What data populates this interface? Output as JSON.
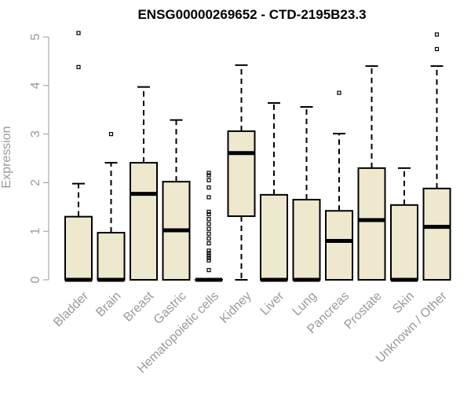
{
  "chart_data": {
    "type": "boxplot",
    "title": "ENSG00000269652 - CTD-2195B23.3",
    "xlabel": "",
    "ylabel": "Expression",
    "ylim": [
      0,
      5.2
    ],
    "yticks": [
      0,
      1,
      2,
      3,
      4,
      5
    ],
    "categories": [
      "Bladder",
      "Brain",
      "Breast",
      "Gastric",
      "Hematopoietic cells",
      "Kidney",
      "Liver",
      "Lung",
      "Pancreas",
      "Prostate",
      "Skin",
      "Unknown / Other"
    ],
    "colors": {
      "box_fill": "#EEE8CE",
      "box_stroke": "#000000",
      "axis": "#999999"
    },
    "boxes": [
      {
        "name": "Bladder",
        "min": 0,
        "q1": 0,
        "median": 0,
        "q3": 1.3,
        "max": 1.98,
        "outliers": [
          4.38,
          5.08
        ]
      },
      {
        "name": "Brain",
        "min": 0,
        "q1": 0,
        "median": 0,
        "q3": 0.97,
        "max": 2.41,
        "outliers": [
          3.0
        ]
      },
      {
        "name": "Breast",
        "min": 0,
        "q1": 0,
        "median": 1.77,
        "q3": 2.41,
        "max": 3.97,
        "outliers": []
      },
      {
        "name": "Gastric",
        "min": 0,
        "q1": 0,
        "median": 1.02,
        "q3": 2.02,
        "max": 3.29,
        "outliers": []
      },
      {
        "name": "Hematopoietic cells",
        "min": 0,
        "q1": 0,
        "median": 0,
        "q3": 0,
        "max": 0,
        "outliers": [
          0.2,
          0.4,
          0.45,
          0.5,
          0.55,
          0.6,
          0.75,
          0.85,
          0.95,
          1.05,
          1.15,
          1.25,
          1.35,
          1.4,
          1.7,
          1.9,
          2.05,
          2.15,
          2.2
        ]
      },
      {
        "name": "Kidney",
        "min": 0,
        "q1": 1.31,
        "median": 2.61,
        "q3": 3.06,
        "max": 4.42,
        "outliers": []
      },
      {
        "name": "Liver",
        "min": 0,
        "q1": 0,
        "median": 0,
        "q3": 1.75,
        "max": 3.64,
        "outliers": []
      },
      {
        "name": "Lung",
        "min": 0,
        "q1": 0,
        "median": 0,
        "q3": 1.65,
        "max": 3.56,
        "outliers": []
      },
      {
        "name": "Pancreas",
        "min": 0,
        "q1": 0,
        "median": 0.8,
        "q3": 1.42,
        "max": 3.01,
        "outliers": [
          3.85
        ]
      },
      {
        "name": "Prostate",
        "min": 0,
        "q1": 0,
        "median": 1.23,
        "q3": 2.3,
        "max": 4.4,
        "outliers": []
      },
      {
        "name": "Skin",
        "min": 0,
        "q1": 0,
        "median": 0,
        "q3": 1.54,
        "max": 2.3,
        "outliers": []
      },
      {
        "name": "Unknown / Other",
        "min": 0,
        "q1": 0,
        "median": 1.09,
        "q3": 1.88,
        "max": 4.4,
        "outliers": [
          4.75,
          5.05
        ]
      }
    ]
  }
}
